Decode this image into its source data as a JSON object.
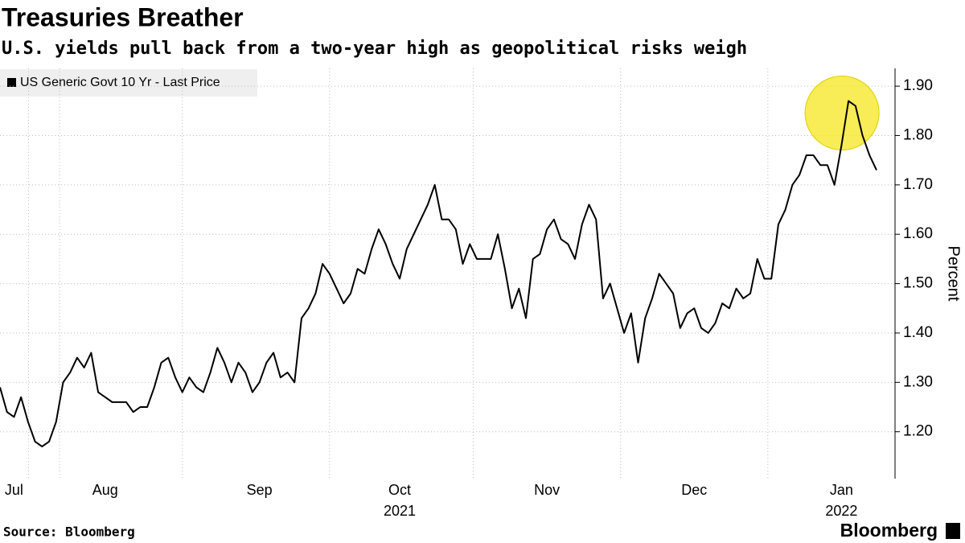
{
  "chart_data": {
    "type": "line",
    "title": "Treasuries Breather",
    "subtitle": "U.S. yields pull back from a two-year high as geopolitical risks weigh",
    "y_axis_label": "Percent",
    "source": "Source: Bloomberg",
    "brand": "Bloomberg",
    "categories": [
      null,
      null,
      "Jul",
      null,
      null,
      null,
      null,
      null,
      null,
      null,
      null,
      null,
      null,
      null,
      null,
      "Aug",
      null,
      null,
      null,
      null,
      null,
      null,
      null,
      null,
      null,
      null,
      null,
      null,
      null,
      null,
      null,
      null,
      null,
      null,
      null,
      null,
      null,
      "Sep",
      null,
      null,
      null,
      null,
      null,
      null,
      null,
      null,
      null,
      null,
      null,
      null,
      null,
      null,
      null,
      null,
      null,
      null,
      null,
      "Oct",
      null,
      null,
      null,
      null,
      null,
      null,
      null,
      null,
      null,
      null,
      null,
      null,
      null,
      null,
      null,
      null,
      null,
      null,
      null,
      null,
      "Nov",
      null,
      null,
      null,
      null,
      null,
      null,
      null,
      null,
      null,
      null,
      null,
      null,
      null,
      null,
      null,
      null,
      null,
      null,
      null,
      null,
      "Dec",
      null,
      null,
      null,
      null,
      null,
      null,
      null,
      null,
      null,
      null,
      null,
      null,
      null,
      null,
      null,
      null,
      null,
      null,
      null,
      null,
      "Jan",
      null,
      null,
      null,
      null,
      null
    ],
    "years": [
      null,
      null,
      null,
      null,
      null,
      null,
      null,
      null,
      null,
      null,
      null,
      null,
      null,
      null,
      null,
      null,
      null,
      null,
      null,
      null,
      null,
      null,
      null,
      null,
      null,
      null,
      null,
      null,
      null,
      null,
      null,
      null,
      null,
      null,
      null,
      null,
      null,
      null,
      null,
      null,
      null,
      null,
      null,
      null,
      null,
      null,
      null,
      null,
      null,
      null,
      null,
      null,
      null,
      null,
      null,
      null,
      null,
      "2021",
      null,
      null,
      null,
      null,
      null,
      null,
      null,
      null,
      null,
      null,
      null,
      null,
      null,
      null,
      null,
      null,
      null,
      null,
      null,
      null,
      null,
      null,
      null,
      null,
      null,
      null,
      null,
      null,
      null,
      null,
      null,
      null,
      null,
      null,
      null,
      null,
      null,
      null,
      null,
      null,
      null,
      null,
      null,
      null,
      null,
      null,
      null,
      null,
      null,
      null,
      null,
      null,
      null,
      null,
      null,
      null,
      null,
      null,
      null,
      null,
      null,
      null,
      "2022",
      null,
      null,
      null,
      null,
      null
    ],
    "series": [
      {
        "name": "US Generic Govt 10 Yr - Last Price",
        "color": "#000000",
        "values": [
          1.29,
          1.24,
          1.23,
          1.27,
          1.22,
          1.18,
          1.17,
          1.18,
          1.22,
          1.3,
          1.32,
          1.35,
          1.33,
          1.36,
          1.28,
          1.27,
          1.26,
          1.26,
          1.26,
          1.24,
          1.25,
          1.25,
          1.29,
          1.34,
          1.35,
          1.31,
          1.28,
          1.31,
          1.29,
          1.28,
          1.32,
          1.37,
          1.34,
          1.3,
          1.34,
          1.32,
          1.28,
          1.3,
          1.34,
          1.36,
          1.31,
          1.32,
          1.3,
          1.43,
          1.45,
          1.48,
          1.54,
          1.52,
          1.49,
          1.46,
          1.48,
          1.53,
          1.52,
          1.57,
          1.61,
          1.58,
          1.54,
          1.51,
          1.57,
          1.6,
          1.63,
          1.66,
          1.7,
          1.63,
          1.63,
          1.61,
          1.54,
          1.58,
          1.55,
          1.55,
          1.55,
          1.6,
          1.53,
          1.45,
          1.49,
          1.43,
          1.55,
          1.56,
          1.61,
          1.63,
          1.59,
          1.58,
          1.55,
          1.62,
          1.66,
          1.63,
          1.47,
          1.5,
          1.45,
          1.4,
          1.44,
          1.34,
          1.43,
          1.47,
          1.52,
          1.5,
          1.48,
          1.41,
          1.44,
          1.45,
          1.41,
          1.4,
          1.42,
          1.46,
          1.45,
          1.49,
          1.47,
          1.48,
          1.55,
          1.51,
          1.51,
          1.62,
          1.65,
          1.7,
          1.72,
          1.76,
          1.76,
          1.74,
          1.74,
          1.7,
          1.78,
          1.87,
          1.86,
          1.8,
          1.76,
          1.73
        ]
      }
    ],
    "ylim": [
      1.105,
      1.936
    ],
    "yticks": [
      {
        "value": 1.2,
        "label": "1.20"
      },
      {
        "value": 1.3,
        "label": "1.30"
      },
      {
        "value": 1.4,
        "label": "1.40"
      },
      {
        "value": 1.5,
        "label": "1.50"
      },
      {
        "value": 1.6,
        "label": "1.60"
      },
      {
        "value": 1.7,
        "label": "1.70"
      },
      {
        "value": 1.8,
        "label": "1.80"
      },
      {
        "value": 1.9,
        "label": "1.90"
      }
    ],
    "grid": true,
    "highlight_color": "#f5e61f"
  }
}
